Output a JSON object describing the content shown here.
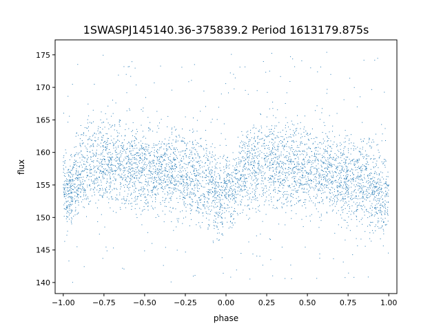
{
  "chart_data": {
    "type": "scatter",
    "title": "1SWASPJ145140.36-375839.2 Period 1613179.875s",
    "xlabel": "phase",
    "ylabel": "flux",
    "xlim": [
      -1.05,
      1.05
    ],
    "ylim": [
      138.3,
      177.3
    ],
    "xticks": [
      -1.0,
      -0.75,
      -0.5,
      -0.25,
      0.0,
      0.25,
      0.5,
      0.75,
      1.0
    ],
    "xtick_labels": [
      "−1.00",
      "−0.75",
      "−0.50",
      "−0.25",
      "0.00",
      "0.25",
      "0.50",
      "0.75",
      "1.00"
    ],
    "yticks": [
      140,
      145,
      150,
      155,
      160,
      165,
      170,
      175
    ],
    "ytick_labels": [
      "140",
      "145",
      "150",
      "155",
      "160",
      "165",
      "170",
      "175"
    ],
    "grid": false,
    "legend": "none",
    "marker_color": "#1f77b4",
    "envelope": {
      "phase": [
        -1.0,
        -0.97,
        -0.92,
        -0.85,
        -0.75,
        -0.6,
        -0.5,
        -0.35,
        -0.2,
        -0.1,
        -0.03,
        0.0
      ],
      "mean": [
        156.0,
        153.0,
        156.5,
        158.0,
        158.5,
        158.0,
        157.5,
        157.0,
        156.0,
        155.0,
        152.5,
        155.0
      ],
      "spread": [
        4.0,
        5.0,
        5.5,
        6.0,
        6.5,
        6.0,
        6.0,
        5.5,
        6.0,
        6.0,
        6.0,
        4.5
      ],
      "outlier_range": [
        140,
        175.5
      ]
    }
  }
}
